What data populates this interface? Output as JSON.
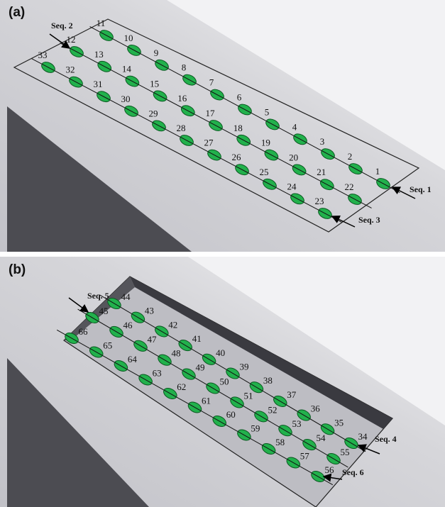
{
  "panels": [
    {
      "label": "(a)",
      "rows": [
        [
          1,
          2,
          3,
          4,
          5,
          6,
          7,
          8,
          9,
          10,
          11
        ],
        [
          12,
          13,
          14,
          15,
          16,
          17,
          18,
          19,
          20,
          21,
          22
        ],
        [
          23,
          24,
          25,
          26,
          27,
          28,
          29,
          30,
          31,
          32,
          33
        ]
      ],
      "sequences": [
        "Seq. 1",
        "Seq. 2",
        "Seq. 3"
      ]
    },
    {
      "label": "(b)",
      "rows": [
        [
          34,
          35,
          36,
          37,
          38,
          39,
          40,
          41,
          42,
          43,
          44
        ],
        [
          45,
          46,
          47,
          48,
          49,
          50,
          51,
          52,
          53,
          54,
          55
        ],
        [
          56,
          57,
          58,
          59,
          60,
          61,
          62,
          63,
          64,
          65,
          66
        ]
      ],
      "sequences": [
        "Seq. 4",
        "Seq. 5",
        "Seq. 6"
      ]
    }
  ]
}
